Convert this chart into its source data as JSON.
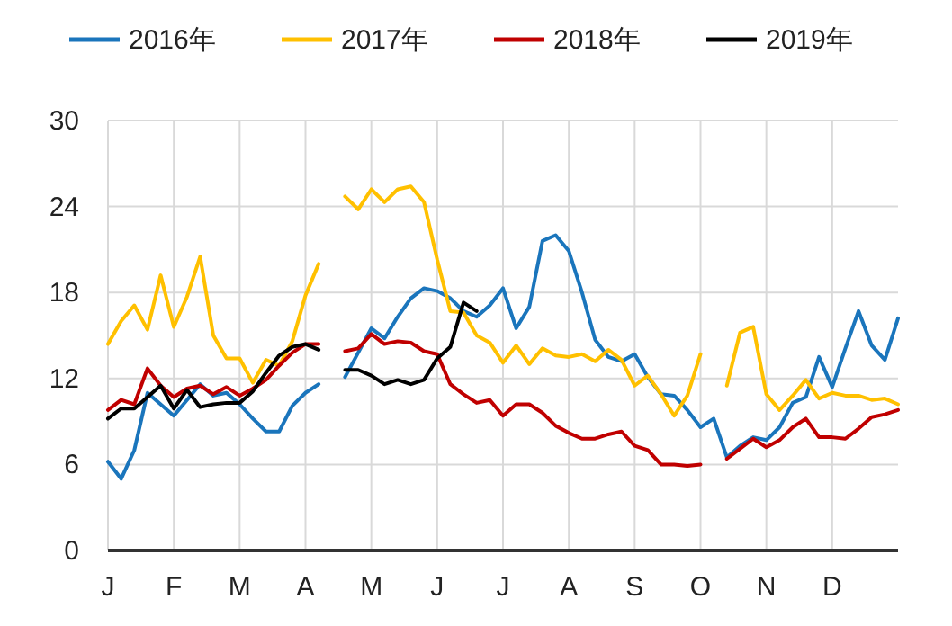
{
  "chart_data": {
    "type": "line",
    "ylim": [
      0,
      30
    ],
    "yticks": [
      0,
      6,
      12,
      18,
      24,
      30
    ],
    "grid": true,
    "legend": "top",
    "marker": "none",
    "line_style": "solid",
    "categories": [
      "J",
      null,
      null,
      null,
      null,
      "F",
      null,
      null,
      null,
      null,
      "M",
      null,
      null,
      null,
      null,
      "A",
      null,
      null,
      null,
      null,
      "M",
      null,
      null,
      null,
      null,
      "J",
      null,
      null,
      null,
      null,
      "J",
      null,
      null,
      null,
      null,
      "A",
      null,
      null,
      null,
      null,
      "S",
      null,
      null,
      null,
      null,
      "O",
      null,
      null,
      null,
      null,
      "N",
      null,
      null,
      null,
      null,
      "D",
      null,
      null,
      null,
      null,
      null
    ],
    "series": [
      {
        "name": "2016年",
        "color": "#1a75bc",
        "values": [
          6.2,
          5.0,
          7,
          11,
          10.2,
          9.4,
          10.5,
          11.6,
          10.8,
          11,
          10.2,
          9.2,
          8.3,
          8.3,
          10.1,
          11,
          11.6,
          null,
          12.1,
          13.8,
          15.5,
          14.8,
          16.3,
          17.6,
          18.3,
          18.1,
          17.6,
          16.7,
          16.3,
          17.1,
          18.3,
          15.5,
          17,
          21.6,
          22,
          20.9,
          18,
          14.7,
          13.5,
          13.2,
          13.7,
          12.1,
          10.9,
          10.8,
          9.8,
          8.6,
          9.2,
          6.5,
          7.3,
          7.9,
          7.7,
          8.6,
          10.3,
          10.7,
          13.5,
          11.4,
          14.1,
          16.7,
          14.3,
          13.3,
          16.2
        ]
      },
      {
        "name": "2017年",
        "color": "#ffc000",
        "values": [
          14.4,
          16,
          17.1,
          15.4,
          19.2,
          15.6,
          17.7,
          20.5,
          15,
          13.4,
          13.4,
          11.7,
          13.3,
          12.9,
          14.6,
          17.8,
          20,
          null,
          24.7,
          23.8,
          25.2,
          24.3,
          25.2,
          25.4,
          24.3,
          20.3,
          16.7,
          16.6,
          15,
          14.5,
          13.1,
          14.3,
          13,
          14.1,
          13.6,
          13.5,
          13.7,
          13.2,
          14,
          13.3,
          11.5,
          12.2,
          10.9,
          9.4,
          10.8,
          13.7,
          null,
          11.5,
          15.2,
          15.6,
          10.9,
          9.8,
          10.8,
          11.9,
          10.6,
          11,
          10.8,
          10.8,
          10.5,
          10.6,
          10.2
        ]
      },
      {
        "name": "2018年",
        "color": "#c00000",
        "values": [
          9.8,
          10.5,
          10.2,
          12.7,
          11.5,
          10.7,
          11.3,
          11.5,
          10.9,
          11.4,
          10.8,
          11.3,
          11.9,
          12.9,
          13.8,
          14.4,
          14.4,
          null,
          13.9,
          14.1,
          15.1,
          14.4,
          14.6,
          14.5,
          13.9,
          13.7,
          11.6,
          10.9,
          10.3,
          10.5,
          9.4,
          10.2,
          10.2,
          9.6,
          8.7,
          8.2,
          7.8,
          7.8,
          8.1,
          8.3,
          7.3,
          7,
          6.0,
          6.0,
          5.9,
          6.0,
          null,
          6.4,
          7.1,
          7.8,
          7.2,
          7.7,
          8.6,
          9.2,
          7.9,
          7.9,
          7.8,
          8.5,
          9.3,
          9.5,
          9.8
        ]
      },
      {
        "name": "2019年",
        "color": "#000000",
        "values": [
          9.2,
          9.9,
          9.9,
          10.7,
          11.5,
          9.9,
          11.2,
          10,
          10.2,
          10.3,
          10.3,
          11.1,
          12.4,
          13.6,
          14.2,
          14.4,
          14,
          null,
          12.6,
          12.6,
          12.2,
          11.6,
          11.9,
          11.6,
          11.9,
          13.4,
          14.2,
          17.3,
          16.7,
          null,
          null,
          null,
          null,
          null,
          null,
          null,
          null,
          null,
          null,
          null,
          null,
          null,
          null,
          null,
          null,
          null,
          null,
          null,
          null,
          null,
          null,
          null,
          null,
          null,
          null,
          null,
          null,
          null,
          null,
          null,
          null
        ]
      }
    ]
  }
}
